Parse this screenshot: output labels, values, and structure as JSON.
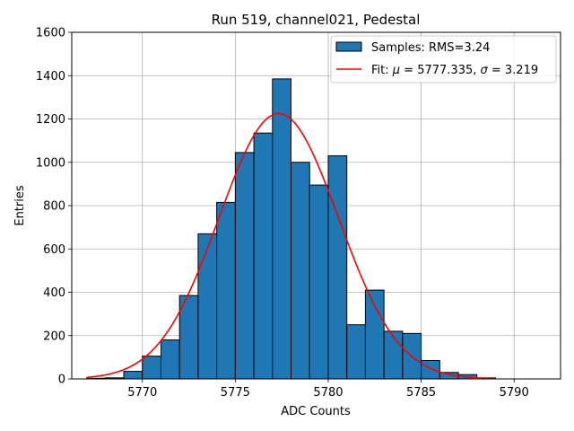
{
  "chart_data": {
    "type": "bar",
    "title": "Run 519, channel021, Pedestal",
    "xlabel": "ADC Counts",
    "ylabel": "Entries",
    "xlim": [
      5766.2,
      5792.5
    ],
    "ylim": [
      0,
      1600
    ],
    "xticks": [
      5770,
      5775,
      5780,
      5785,
      5790
    ],
    "yticks": [
      0,
      200,
      400,
      600,
      800,
      1000,
      1200,
      1400,
      1600
    ],
    "grid": true,
    "legend_position": "top-right",
    "histogram": {
      "name": "Samples: RMS=3.24",
      "color": "#1f77b4",
      "edge_color": "#000000",
      "bin_width": 1,
      "bin_starts": [
        5767,
        5768,
        5769,
        5770,
        5771,
        5772,
        5773,
        5774,
        5775,
        5776,
        5777,
        5778,
        5779,
        5780,
        5781,
        5782,
        5783,
        5784,
        5785,
        5786,
        5787,
        5788,
        5789,
        5790
      ],
      "values": [
        3,
        5,
        35,
        105,
        180,
        385,
        670,
        815,
        1045,
        1135,
        1385,
        1000,
        895,
        1030,
        250,
        410,
        220,
        210,
        85,
        30,
        20,
        5,
        0,
        0
      ]
    },
    "fit": {
      "name": "Fit: μ = 5777.335, σ = 3.219",
      "name_prefix": "Fit: ",
      "mu_symbol": "μ",
      "sigma_symbol": "σ",
      "mu_text": " = 5777.335, ",
      "sigma_text": " = 3.219",
      "color": "#ff0000",
      "mu": 5777.335,
      "sigma": 3.219,
      "amplitude": 1225,
      "x_range": [
        5767,
        5789
      ]
    }
  }
}
